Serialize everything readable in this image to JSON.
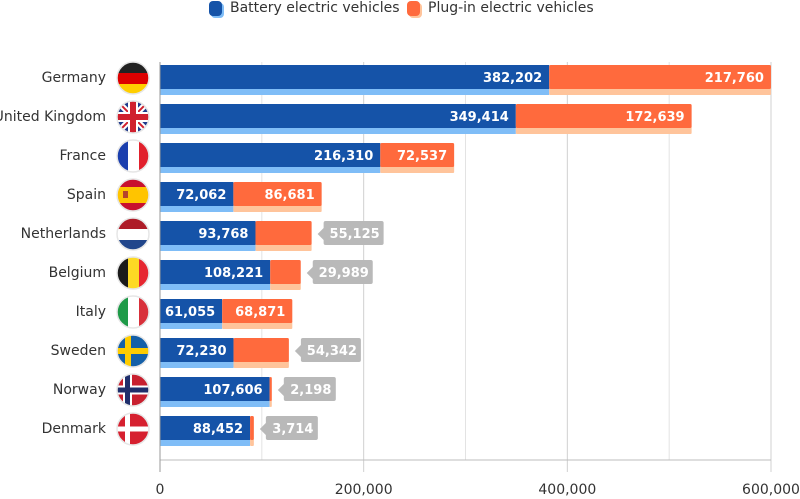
{
  "colors": {
    "bev": "#1553A8",
    "bev_shadow": "#7FBDF7",
    "phev": "#FF6A3D",
    "phev_shadow": "#FFC49B",
    "callout": "#B9B9B9",
    "grid": "#E3E3E3",
    "axis": "#BDBDBD"
  },
  "chart_data": {
    "type": "bar",
    "orientation": "horizontal",
    "stacked": true,
    "title": "",
    "xlabel": "",
    "ylabel": "",
    "xlim": [
      0,
      600000
    ],
    "x_ticks": [
      0,
      200000,
      400000,
      600000
    ],
    "x_tick_labels": [
      "0",
      "200,000",
      "400,000",
      "600,000"
    ],
    "minor_grid_step": 100000,
    "grid": true,
    "legend_position": "top-center",
    "categories": [
      "Germany",
      "United Kingdom",
      "France",
      "Spain",
      "Netherlands",
      "Belgium",
      "Italy",
      "Sweden",
      "Norway",
      "Denmark"
    ],
    "flags": [
      "de",
      "gb",
      "fr",
      "es",
      "nl",
      "be",
      "it",
      "se",
      "no",
      "dk"
    ],
    "series": [
      {
        "name": "Battery electric vehicles",
        "key": "bev",
        "values": [
          382202,
          349414,
          216310,
          72062,
          93768,
          108221,
          61055,
          72230,
          107606,
          88452
        ],
        "labels": [
          "382,202",
          "349,414",
          "216,310",
          "72,062",
          "93,768",
          "108,221",
          "61,055",
          "72,230",
          "107,606",
          "88,452"
        ]
      },
      {
        "name": "Plug-in electric vehicles",
        "key": "phev",
        "values": [
          217760,
          172639,
          72537,
          86681,
          55125,
          29989,
          68871,
          54342,
          2198,
          3714
        ],
        "labels": [
          "217,760",
          "172,639",
          "72,537",
          "86,681",
          "55,125",
          "29,989",
          "68,871",
          "54,342",
          "2,198",
          "3,714"
        ],
        "label_outside": [
          false,
          false,
          false,
          false,
          true,
          true,
          false,
          true,
          true,
          true
        ]
      }
    ]
  }
}
